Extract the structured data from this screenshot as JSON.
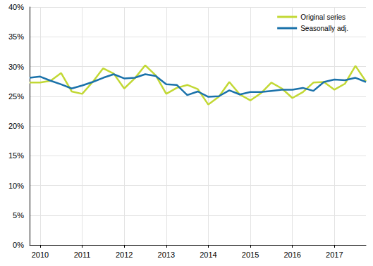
{
  "chart_data": {
    "type": "line",
    "categories": [
      null,
      "2010",
      null,
      null,
      null,
      "2011",
      null,
      null,
      null,
      "2012",
      null,
      null,
      null,
      "2013",
      null,
      null,
      null,
      "2014",
      null,
      null,
      null,
      "2015",
      null,
      null,
      null,
      "2016",
      null,
      null,
      null,
      "2017",
      null,
      null,
      null
    ],
    "series": [
      {
        "name": "Original series",
        "color": "#c2d834",
        "values": [
          27.3,
          27.3,
          27.6,
          28.9,
          25.8,
          25.4,
          27.4,
          29.7,
          28.8,
          26.3,
          28.0,
          30.2,
          28.5,
          25.4,
          26.4,
          26.9,
          26.2,
          23.6,
          24.9,
          27.4,
          25.3,
          24.3,
          25.5,
          27.3,
          26.3,
          24.7,
          25.7,
          27.3,
          27.4,
          26.1,
          27.1,
          30.1,
          27.5
        ]
      },
      {
        "name": "Seasonally adj.",
        "color": "#1b72aa",
        "values": [
          28.1,
          28.3,
          27.6,
          27.0,
          26.3,
          26.8,
          27.4,
          28.1,
          28.7,
          28.0,
          28.1,
          28.7,
          28.4,
          27.0,
          26.9,
          25.2,
          25.8,
          24.9,
          25.0,
          26.0,
          25.3,
          25.7,
          25.7,
          25.9,
          26.1,
          26.1,
          26.4,
          25.9,
          27.4,
          27.8,
          27.7,
          28.1,
          27.4
        ]
      }
    ],
    "ylim": [
      0,
      40
    ],
    "yticks": [
      {
        "value": 0,
        "label": "0%"
      },
      {
        "value": 5,
        "label": "5%"
      },
      {
        "value": 10,
        "label": "10%"
      },
      {
        "value": 15,
        "label": "15%"
      },
      {
        "value": 20,
        "label": "20%"
      },
      {
        "value": 25,
        "label": "25%"
      },
      {
        "value": 30,
        "label": "30%"
      },
      {
        "value": 35,
        "label": "35%"
      },
      {
        "value": 40,
        "label": "40%"
      }
    ],
    "grid": true,
    "legend": "top-right"
  }
}
